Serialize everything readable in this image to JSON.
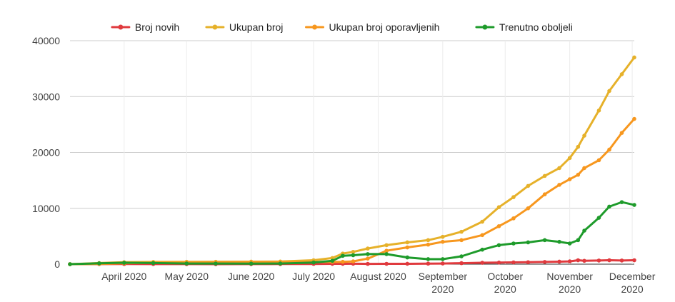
{
  "chart_data": {
    "type": "line",
    "title": "",
    "xlabel": "",
    "ylabel": "",
    "ylim": [
      0,
      40000
    ],
    "y_ticks": [
      "0",
      "10000",
      "20000",
      "30000",
      "40000"
    ],
    "x_tick_labels": [
      {
        "date": "2020-04-01",
        "lines": [
          "April 2020"
        ]
      },
      {
        "date": "2020-05-01",
        "lines": [
          "May 2020"
        ]
      },
      {
        "date": "2020-06-01",
        "lines": [
          "June 2020"
        ]
      },
      {
        "date": "2020-07-01",
        "lines": [
          "July 2020"
        ]
      },
      {
        "date": "2020-08-01",
        "lines": [
          "August 2020"
        ]
      },
      {
        "date": "2020-09-01",
        "lines": [
          "September",
          "2020"
        ]
      },
      {
        "date": "2020-10-01",
        "lines": [
          "October",
          "2020"
        ]
      },
      {
        "date": "2020-11-01",
        "lines": [
          "November",
          "2020"
        ]
      },
      {
        "date": "2020-12-01",
        "lines": [
          "December",
          "2020"
        ]
      }
    ],
    "x_range": [
      "2020-03-06",
      "2020-12-02"
    ],
    "grid": true,
    "legend_position": "top",
    "x": [
      "2020-03-06",
      "2020-03-20",
      "2020-04-01",
      "2020-04-15",
      "2020-05-01",
      "2020-05-15",
      "2020-06-01",
      "2020-06-15",
      "2020-07-01",
      "2020-07-10",
      "2020-07-15",
      "2020-07-20",
      "2020-07-27",
      "2020-08-05",
      "2020-08-15",
      "2020-08-25",
      "2020-09-01",
      "2020-09-10",
      "2020-09-20",
      "2020-09-28",
      "2020-10-05",
      "2020-10-12",
      "2020-10-20",
      "2020-10-27",
      "2020-11-01",
      "2020-11-05",
      "2020-11-08",
      "2020-11-15",
      "2020-11-20",
      "2020-11-26",
      "2020-12-02"
    ],
    "series": [
      {
        "name": "Broj novih",
        "color": "#e03a3e",
        "values": [
          0,
          10,
          20,
          15,
          10,
          5,
          10,
          20,
          40,
          60,
          60,
          80,
          50,
          60,
          70,
          100,
          120,
          180,
          250,
          280,
          320,
          350,
          400,
          450,
          500,
          700,
          600,
          650,
          700,
          650,
          700
        ]
      },
      {
        "name": "Ukupan broj",
        "color": "#e6b12a",
        "values": [
          0,
          200,
          350,
          400,
          420,
          430,
          450,
          470,
          700,
          1100,
          1900,
          2200,
          2800,
          3400,
          3900,
          4300,
          4900,
          5800,
          7600,
          10200,
          12000,
          14000,
          15800,
          17200,
          19000,
          21000,
          23000,
          27500,
          31000,
          34000,
          37000
        ]
      },
      {
        "name": "Ukupan broj oporavljenih",
        "color": "#f7971e",
        "values": [
          0,
          50,
          150,
          250,
          300,
          320,
          350,
          360,
          380,
          400,
          420,
          500,
          1000,
          2400,
          3000,
          3500,
          4000,
          4300,
          5200,
          6800,
          8200,
          10000,
          12500,
          14200,
          15200,
          16000,
          17200,
          18600,
          20500,
          23500,
          26000
        ]
      },
      {
        "name": "Trenutno oboljeli",
        "color": "#1e9b2b",
        "values": [
          0,
          150,
          250,
          200,
          120,
          110,
          100,
          120,
          300,
          600,
          1500,
          1600,
          1800,
          1800,
          1200,
          900,
          900,
          1400,
          2600,
          3400,
          3700,
          3900,
          4300,
          4000,
          3700,
          4300,
          6000,
          8300,
          10300,
          11100,
          10600
        ]
      }
    ]
  }
}
